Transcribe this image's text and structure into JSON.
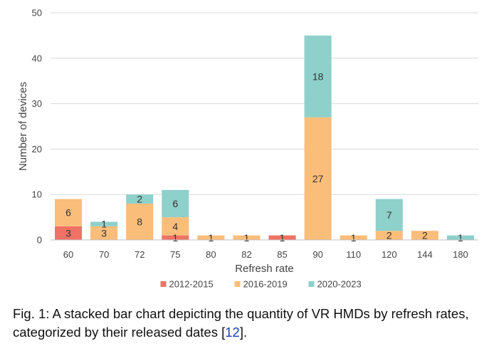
{
  "chart_data": {
    "type": "bar",
    "stacked": true,
    "title": "",
    "xlabel": "Refresh rate",
    "ylabel": "Number of devices",
    "ylim": [
      0,
      50
    ],
    "yticks": [
      "0",
      "10",
      "20",
      "30",
      "40",
      "50"
    ],
    "grid": true,
    "legend_position": "bottom",
    "categories": [
      "60",
      "70",
      "72",
      "75",
      "80",
      "82",
      "85",
      "90",
      "110",
      "120",
      "144",
      "180"
    ],
    "series": [
      {
        "name": "2012-2015",
        "color": "#f07265",
        "values": [
          3,
          0,
          0,
          1,
          0,
          0,
          1,
          0,
          0,
          0,
          0,
          0
        ],
        "labels": [
          "3",
          "",
          "",
          "1",
          "",
          "",
          "1",
          "",
          "",
          "",
          "",
          ""
        ]
      },
      {
        "name": "2016-2019",
        "color": "#fbbd7a",
        "values": [
          6,
          3,
          8,
          4,
          1,
          1,
          0,
          27,
          1,
          2,
          2,
          0
        ],
        "labels": [
          "6",
          "3",
          "8",
          "4",
          "1",
          "1",
          "",
          "27",
          "1",
          "2",
          "2",
          ""
        ]
      },
      {
        "name": "2020-2023",
        "color": "#8ed0ca",
        "values": [
          0,
          1,
          2,
          6,
          0,
          0,
          0,
          18,
          0,
          7,
          0,
          1
        ],
        "labels": [
          "",
          "1",
          "2",
          "6",
          "",
          "",
          "",
          "18",
          "",
          "7",
          "",
          "1"
        ]
      }
    ]
  },
  "caption": {
    "prefix": "Fig. 1: A stacked bar chart depicting the quantity of VR HMDs by refresh rates, categorized by their released dates [",
    "cite": "12",
    "suffix": "]."
  }
}
